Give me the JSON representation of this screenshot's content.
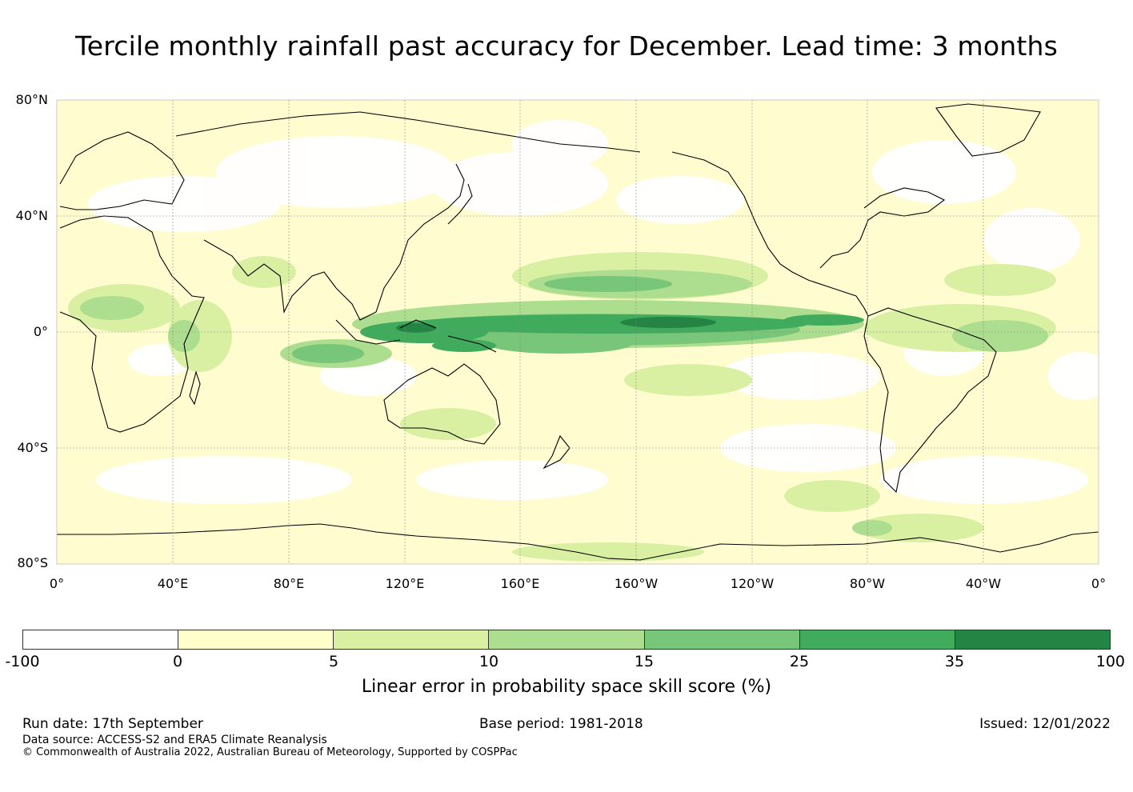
{
  "title": "Tercile monthly rainfall past accuracy for December. Lead time: 3 months",
  "map": {
    "lat_labels": [
      "80°N",
      "40°N",
      "0°",
      "40°S",
      "80°S"
    ],
    "lon_labels": [
      "0°",
      "40°E",
      "80°E",
      "120°E",
      "160°E",
      "160°W",
      "120°W",
      "80°W",
      "40°W",
      "0°"
    ],
    "colors": {
      "ocean_base": "#fffdd0",
      "land_white": "#ffffff",
      "light_green": "#d9f0a3",
      "mid_green": "#addd8e",
      "green": "#78c679",
      "dark_green": "#41ab5d",
      "darkest_green": "#238443",
      "coast": "#000000"
    }
  },
  "colorbar": {
    "colors": [
      "#ffffff",
      "#ffffcc",
      "#d9f0a3",
      "#addd8e",
      "#78c679",
      "#41ab5d",
      "#238443"
    ],
    "ticks": [
      "-100",
      "0",
      "5",
      "10",
      "15",
      "25",
      "35",
      "100"
    ],
    "label": "Linear error in probability space skill score (%)"
  },
  "footer": {
    "run_date": "Run date: 17th September",
    "base_period": "Base period: 1981-2018",
    "issued": "Issued: 12/01/2022",
    "data_source": "Data source: ACCESS-S2 and ERA5 Climate Reanalysis",
    "copyright": "© Commonwealth of Australia 2022, Australian Bureau of Meteorology, Supported by COSPPac"
  }
}
